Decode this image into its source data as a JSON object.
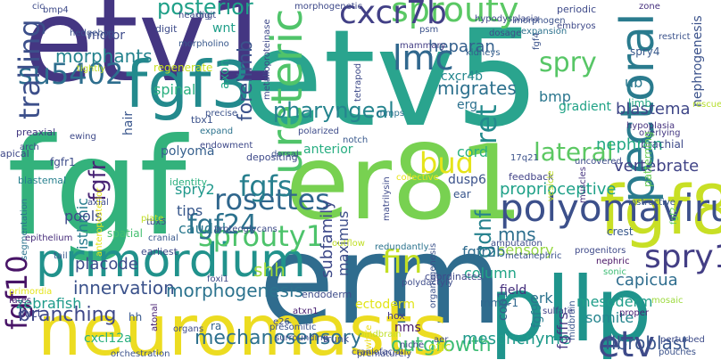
{
  "words": [
    {
      "text": "fgf",
      "color": "#33b27c"
    },
    {
      "text": "etv5",
      "color": "#2aa48e"
    },
    {
      "text": "etv1",
      "color": "#443682"
    },
    {
      "text": "erm",
      "color": "#2f6c8e"
    },
    {
      "text": "er81",
      "color": "#78d151"
    },
    {
      "text": "pllp",
      "color": "#1f948c"
    },
    {
      "text": "neuromasts",
      "color": "#ecdc21"
    },
    {
      "text": "fgf8",
      "color": "#c8df25"
    },
    {
      "text": "fgf3",
      "color": "#238a8d"
    },
    {
      "text": "primordium",
      "color": "#21928c"
    },
    {
      "text": "ureteric",
      "color": "#50c46a"
    },
    {
      "text": "pectoral",
      "color": "#2a7b8e"
    },
    {
      "text": "sprouty",
      "color": "#5ac864"
    },
    {
      "text": "polyomavirus",
      "color": "#3c508b"
    },
    {
      "text": "rosettes",
      "color": "#30678d"
    },
    {
      "text": "sprouty1",
      "color": "#4dc36b"
    },
    {
      "text": "spry1",
      "color": "#433e85"
    },
    {
      "text": "fgf24",
      "color": "#2c728e"
    },
    {
      "text": "fgfs",
      "color": "#277f8e"
    },
    {
      "text": "lmc",
      "color": "#31688e"
    },
    {
      "text": "cxcr7b",
      "color": "#424086"
    },
    {
      "text": "su5402",
      "color": "#2e6e8e"
    },
    {
      "text": "fgf10",
      "color": "#481467"
    },
    {
      "text": "trailing",
      "color": "#3c4f8a"
    },
    {
      "text": "etv",
      "color": "#3e4a89"
    },
    {
      "text": "fin",
      "color": "#c2df23"
    },
    {
      "text": "bud",
      "color": "#e5e419"
    },
    {
      "text": "ret",
      "color": "#238b8d"
    },
    {
      "text": "lateral",
      "color": "#5cc863"
    },
    {
      "text": "spry",
      "color": "#57c666"
    },
    {
      "text": "pharyngeal",
      "color": "#25848e"
    },
    {
      "text": "mechanosensory",
      "color": "#2d708e"
    },
    {
      "text": "outgrowth",
      "color": "#3dbc74"
    },
    {
      "text": "branching",
      "color": "#3f4889"
    },
    {
      "text": "innervation",
      "color": "#3b528b"
    },
    {
      "text": "morphogenesis",
      "color": "#2c738e"
    },
    {
      "text": "fgfr",
      "color": "#482475"
    },
    {
      "text": "morphants",
      "color": "#25838e"
    },
    {
      "text": "posterior",
      "color": "#1fa088"
    },
    {
      "text": "heparan",
      "color": "#34608d"
    },
    {
      "text": "migrates",
      "color": "#2d718e"
    },
    {
      "text": "gdnf",
      "color": "#26828e"
    },
    {
      "text": "mns",
      "color": "#2e6f8e"
    },
    {
      "text": "fibroblast",
      "color": "#39568c"
    },
    {
      "text": "mesenchyme",
      "color": "#1f9a8a"
    },
    {
      "text": "blastema",
      "color": "#3f4788"
    },
    {
      "text": "vertebrate",
      "color": "#414487"
    },
    {
      "text": "proprioceptive",
      "color": "#1fa188"
    },
    {
      "text": "nephron",
      "color": "#22a884"
    },
    {
      "text": "capicua",
      "color": "#2e6d8e"
    },
    {
      "text": "forelimb",
      "color": "#3b528b"
    },
    {
      "text": "zebrafish",
      "color": "#1e9b8a"
    },
    {
      "text": "sensory",
      "color": "#95d840"
    },
    {
      "text": "placode",
      "color": "#3e4c8a"
    },
    {
      "text": "shh",
      "color": "#a0da39"
    },
    {
      "text": "spry2",
      "color": "#1f988b"
    },
    {
      "text": "tips",
      "color": "#38588c"
    },
    {
      "text": "caudal",
      "color": "#2a788e"
    },
    {
      "text": "isthmic",
      "color": "#287c8e"
    },
    {
      "text": "pools",
      "color": "#3e4a89"
    },
    {
      "text": "column",
      "color": "#20a486"
    },
    {
      "text": "fgfr2b",
      "color": "#2f6b8e"
    },
    {
      "text": "fgffrs",
      "color": "#453882"
    },
    {
      "text": "mesoderm",
      "color": "#1e9d89"
    },
    {
      "text": "somite",
      "color": "#25858e"
    },
    {
      "text": "subfamily",
      "color": "#3e4989"
    },
    {
      "text": "maximus",
      "color": "#3d4e8a"
    },
    {
      "text": "ectoderm",
      "color": "#e2e418"
    },
    {
      "text": "cord",
      "color": "#2ab07f"
    },
    {
      "text": "lmc",
      "color": "#31688e"
    },
    {
      "text": "spinal",
      "color": "#29af7f"
    },
    {
      "text": "axon",
      "color": "#21a685"
    },
    {
      "text": "hair",
      "color": "#39568c"
    },
    {
      "text": "polyoma",
      "color": "#355f8d"
    },
    {
      "text": "cxcr4b",
      "color": "#24878e"
    },
    {
      "text": "erg",
      "color": "#2c718e"
    },
    {
      "text": "bmp",
      "color": "#2a768e"
    },
    {
      "text": "gradient",
      "color": "#20a386"
    },
    {
      "text": "anterior",
      "color": "#27ad81"
    },
    {
      "text": "dusp6",
      "color": "#3b528b"
    },
    {
      "text": "ear",
      "color": "#39568c"
    },
    {
      "text": "motor",
      "color": "#3e4c8a"
    },
    {
      "text": "wnt",
      "color": "#1f9e89"
    },
    {
      "text": "ub",
      "color": "#2a788e"
    },
    {
      "text": "limb",
      "color": "#22a884"
    },
    {
      "text": "nephrogenesis",
      "color": "#3b528b"
    },
    {
      "text": "hypoplasia",
      "color": "#46337f"
    },
    {
      "text": "spry4",
      "color": "#38598c"
    },
    {
      "text": "brachial",
      "color": "#3e4a89"
    },
    {
      "text": "erk",
      "color": "#2c728e"
    },
    {
      "text": "field",
      "color": "#46307e"
    },
    {
      "text": "fgf9",
      "color": "#287c8e"
    },
    {
      "text": "cop1",
      "color": "#355e8d"
    },
    {
      "text": "mmp-1",
      "color": "#31678e"
    },
    {
      "text": "cxcl12a",
      "color": "#2ab07f"
    },
    {
      "text": "otic",
      "color": "#bddf26"
    },
    {
      "text": "regenerate",
      "color": "#c8e020"
    },
    {
      "text": "hh",
      "color": "#38588c"
    },
    {
      "text": "nms",
      "color": "#48186a"
    },
    {
      "text": "ra",
      "color": "#32648e"
    },
    {
      "text": "tbx1",
      "color": "#3b528b"
    },
    {
      "text": "identity",
      "color": "#2ab07f"
    },
    {
      "text": "apical",
      "color": "#3f4889"
    },
    {
      "text": "fgfr1",
      "color": "#3d4d8a"
    },
    {
      "text": "blastemal",
      "color": "#27808e"
    },
    {
      "text": "preaxial",
      "color": "#443983"
    },
    {
      "text": "depositing",
      "color": "#3e4a89"
    },
    {
      "text": "coordinates",
      "color": "#3f4889"
    },
    {
      "text": "endoderm",
      "color": "#3e4c8a"
    },
    {
      "text": "feedback",
      "color": "#414287"
    },
    {
      "text": "17q21",
      "color": "#3b528b"
    },
    {
      "text": "digit",
      "color": "#3e4c8a"
    },
    {
      "text": "segmentation",
      "color": "#2c738e"
    },
    {
      "text": "earliest",
      "color": "#3e4a89"
    },
    {
      "text": "spatial",
      "color": "#44bf70"
    },
    {
      "text": "epithelium",
      "color": "#472d7b"
    },
    {
      "text": "duct",
      "color": "#3e4989"
    },
    {
      "text": "fates",
      "color": "#482475"
    },
    {
      "text": "tbx5",
      "color": "#3f4889"
    },
    {
      "text": "trunk",
      "color": "#3e4c8a"
    },
    {
      "text": "hox",
      "color": "#443a83"
    },
    {
      "text": "niche",
      "color": "#404588"
    },
    {
      "text": "aer",
      "color": "#3e4a89"
    },
    {
      "text": "fgf2",
      "color": "#5ec962"
    },
    {
      "text": "fgf4",
      "color": "#3b528b"
    },
    {
      "text": "midbrain",
      "color": "#39568c"
    },
    {
      "text": "nephric",
      "color": "#471063"
    },
    {
      "text": "perturbed",
      "color": "#3e4c8a"
    },
    {
      "text": "pouches",
      "color": "#3b528b"
    },
    {
      "text": "progenitors",
      "color": "#3e4989"
    },
    {
      "text": "crest",
      "color": "#38588c"
    },
    {
      "text": "mosaic",
      "color": "#9bd93c"
    },
    {
      "text": "uncovered",
      "color": "#3e4c8a"
    },
    {
      "text": "rescue",
      "color": "#b5de2b"
    },
    {
      "text": "overlying",
      "color": "#443983"
    },
    {
      "text": "periodic",
      "color": "#3e4a89"
    },
    {
      "text": "embryos",
      "color": "#3e4989"
    },
    {
      "text": "restrict",
      "color": "#3b528b"
    },
    {
      "text": "zone",
      "color": "#46307e"
    },
    {
      "text": "sonic",
      "color": "#3dbc74"
    },
    {
      "text": "proper",
      "color": "#482173"
    },
    {
      "text": "sulfate",
      "color": "#414287"
    },
    {
      "text": "amputation",
      "color": "#3e4c8a"
    },
    {
      "text": "metanephric",
      "color": "#3b528b"
    },
    {
      "text": "instructive",
      "color": "#38588c"
    },
    {
      "text": "patterning",
      "color": "#6ccd5a"
    },
    {
      "text": "muscles",
      "color": "#46337f"
    },
    {
      "text": "vesicle",
      "color": "#c0df25"
    },
    {
      "text": "collective",
      "color": "#e8e419"
    },
    {
      "text": "uncovered",
      "color": "#3e4c8a"
    },
    {
      "text": "matrilysin",
      "color": "#3e4989"
    },
    {
      "text": "kidneys",
      "color": "#355f8d"
    },
    {
      "text": "mammary",
      "color": "#433e85"
    },
    {
      "text": "dosage",
      "color": "#3e4c8a"
    },
    {
      "text": "morphogen",
      "color": "#3b528b"
    },
    {
      "text": "hypodysplasia",
      "color": "#3e4a89"
    },
    {
      "text": "expansion",
      "color": "#2c728e"
    },
    {
      "text": "psm",
      "color": "#3b528b"
    },
    {
      "text": "metalloproteinase",
      "color": "#3e4989"
    },
    {
      "text": "morpholino",
      "color": "#38588c"
    },
    {
      "text": "hearing",
      "color": "#3e4c8a"
    },
    {
      "text": "digit",
      "color": "#3e4c8a"
    },
    {
      "text": "precise",
      "color": "#3b528b"
    },
    {
      "text": "expand",
      "color": "#2c738e"
    },
    {
      "text": "endowment",
      "color": "#3e4989"
    },
    {
      "text": "polarized",
      "color": "#3e4c8a"
    },
    {
      "text": "notch",
      "color": "#38588c"
    },
    {
      "text": "tetrapod",
      "color": "#3e4a89"
    },
    {
      "text": "mmps",
      "color": "#2c728e"
    },
    {
      "text": "morphogenetic",
      "color": "#3e4989"
    },
    {
      "text": "dorsal",
      "color": "#3b528b"
    },
    {
      "text": "anteroposterior",
      "color": "#e5e419"
    },
    {
      "text": "proteoglycans",
      "color": "#3e4c8a"
    },
    {
      "text": "cranial",
      "color": "#38588c"
    },
    {
      "text": "plate",
      "color": "#c0df25"
    },
    {
      "text": "foxi1",
      "color": "#3e4a89"
    },
    {
      "text": "atxn1",
      "color": "#482173"
    },
    {
      "text": "e26",
      "color": "#3e4c8a"
    },
    {
      "text": "presomitic",
      "color": "#3b528b"
    },
    {
      "text": "surrounding",
      "color": "#3e4989"
    },
    {
      "text": "redundantly",
      "color": "#2c738e"
    },
    {
      "text": "polydactyly",
      "color": "#3e4c8a"
    },
    {
      "text": "organogenesis",
      "color": "#3b528b"
    },
    {
      "text": "hindbrain",
      "color": "#c0df25"
    },
    {
      "text": "prematurely",
      "color": "#3e4a89"
    },
    {
      "text": "craniofacial",
      "color": "#3e4989"
    },
    {
      "text": "orchestration",
      "color": "#3b528b"
    },
    {
      "text": "organs",
      "color": "#3e4c8a"
    },
    {
      "text": "atonal",
      "color": "#482173"
    },
    {
      "text": "axial",
      "color": "#3e4c8a"
    },
    {
      "text": "tail",
      "color": "#38588c"
    },
    {
      "text": "arch",
      "color": "#3e4c8a"
    },
    {
      "text": "ewing",
      "color": "#3e4989"
    },
    {
      "text": "cic",
      "color": "#3e4c8a"
    },
    {
      "text": "bmp4",
      "color": "#3e4a89"
    },
    {
      "text": "hedgehog",
      "color": "#3b528b"
    },
    {
      "text": "tightly",
      "color": "#c0df25"
    },
    {
      "text": "outflow",
      "color": "#c0df25"
    },
    {
      "text": "primordia",
      "color": "#e5e419"
    },
    {
      "text": "white",
      "color": "#ecdc21"
    }
  ]
}
